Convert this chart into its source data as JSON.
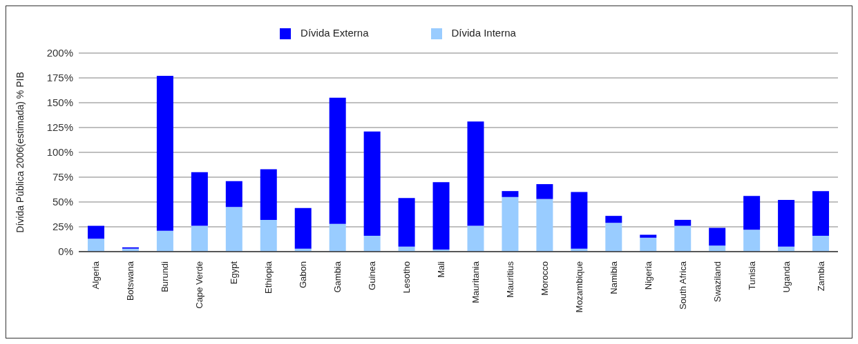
{
  "chart_data": {
    "type": "bar",
    "stacked": true,
    "ylabel": "Dívida Pública 2006(estimada) % PIB",
    "categories": [
      "Algeria",
      "Botswana",
      "Burundi",
      "Cape Verde",
      "Egypt",
      "Ethiopia",
      "Gabon",
      "Gambia",
      "Guinea",
      "Lesotho",
      "Mali",
      "Mauritania",
      "Mauritius",
      "Morocco",
      "Mozambique",
      "Namibia",
      "Nigeria",
      "South Africa",
      "Swaziland",
      "Tunisia",
      "Uganda",
      "Zambia"
    ],
    "series": [
      {
        "name": "Dívida Interna",
        "color": "#99ccff",
        "values": [
          13,
          3,
          21,
          26,
          45,
          32,
          3,
          28,
          16,
          5,
          2,
          26,
          55,
          53,
          3,
          29,
          14,
          26,
          6,
          22,
          5,
          16
        ]
      },
      {
        "name": "Dívida Externa",
        "color": "#0000ff",
        "values": [
          13,
          1.3,
          156,
          54,
          26,
          51,
          41,
          127,
          105,
          49,
          68,
          105,
          6,
          15,
          57,
          7,
          3,
          6,
          18,
          34,
          47,
          45
        ]
      }
    ],
    "ylim": [
      0,
      200
    ],
    "yticks": [
      {
        "value": 0,
        "label": "0%"
      },
      {
        "value": 25,
        "label": "25%"
      },
      {
        "value": 50,
        "label": "50%"
      },
      {
        "value": 75,
        "label": "75%"
      },
      {
        "value": 100,
        "label": "100%"
      },
      {
        "value": 125,
        "label": "125%"
      },
      {
        "value": 150,
        "label": "150%"
      },
      {
        "value": 175,
        "label": "175%"
      },
      {
        "value": 200,
        "label": "200%"
      }
    ],
    "grid": "y",
    "legend": "top"
  }
}
